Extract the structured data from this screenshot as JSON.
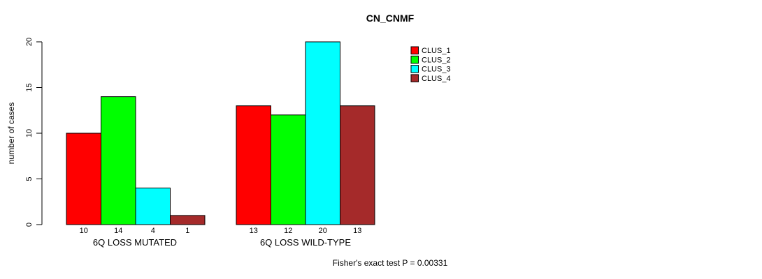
{
  "chart_data": {
    "type": "bar",
    "title": "CN_CNMF",
    "ylabel": "number of cases",
    "xlabel": "",
    "ylim": [
      0,
      20
    ],
    "yticks": [
      0,
      5,
      10,
      15,
      20
    ],
    "grid": false,
    "categories": [
      "6Q LOSS MUTATED",
      "6Q LOSS WILD-TYPE"
    ],
    "series": [
      {
        "name": "CLUS_1",
        "color": "#FF0000",
        "values": [
          10,
          13
        ]
      },
      {
        "name": "CLUS_2",
        "color": "#00FF00",
        "values": [
          14,
          12
        ]
      },
      {
        "name": "CLUS_3",
        "color": "#00FFFF",
        "values": [
          4,
          20
        ]
      },
      {
        "name": "CLUS_4",
        "color": "#A52A2A",
        "values": [
          1,
          13
        ]
      }
    ],
    "bar_value_labels": [
      [
        10,
        14,
        4,
        1
      ],
      [
        13,
        12,
        20,
        13
      ]
    ],
    "legend_position": "top-right",
    "annotation": "Fisher's exact test P = 0.00331",
    "axis_color": "#000000",
    "bar_border_color": "#000000"
  }
}
